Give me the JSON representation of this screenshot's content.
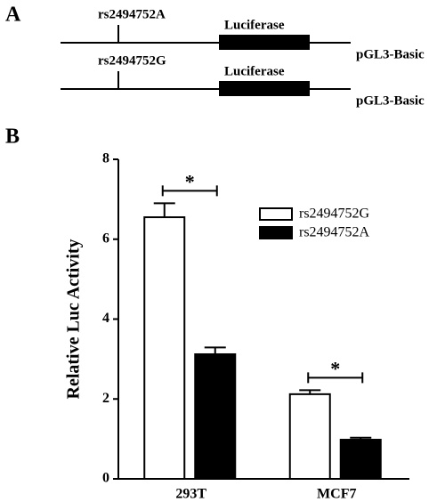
{
  "panel_a": {
    "label": "A",
    "constructs": [
      {
        "snp": "rs2494752A",
        "gene": "Luciferase",
        "vector": "pGL3-Basic"
      },
      {
        "snp": "rs2494752G",
        "gene": "Luciferase",
        "vector": "pGL3-Basic"
      }
    ]
  },
  "panel_b": {
    "label": "B"
  },
  "chart_data": {
    "type": "bar",
    "ylabel": "Relative Luc Activity",
    "categories": [
      "293T",
      "MCF7"
    ],
    "series": [
      {
        "name": "rs2494752G",
        "color": "#ffffff",
        "values": [
          6.55,
          2.12
        ],
        "errors": [
          0.35,
          0.1
        ]
      },
      {
        "name": "rs2494752A",
        "color": "#000000",
        "values": [
          3.12,
          0.98
        ],
        "errors": [
          0.17,
          0.05
        ]
      }
    ],
    "ylim": [
      0,
      8
    ],
    "yticks": [
      0,
      2,
      4,
      6,
      8
    ],
    "annotations": [
      {
        "text": "*"
      },
      {
        "text": "*"
      }
    ]
  }
}
